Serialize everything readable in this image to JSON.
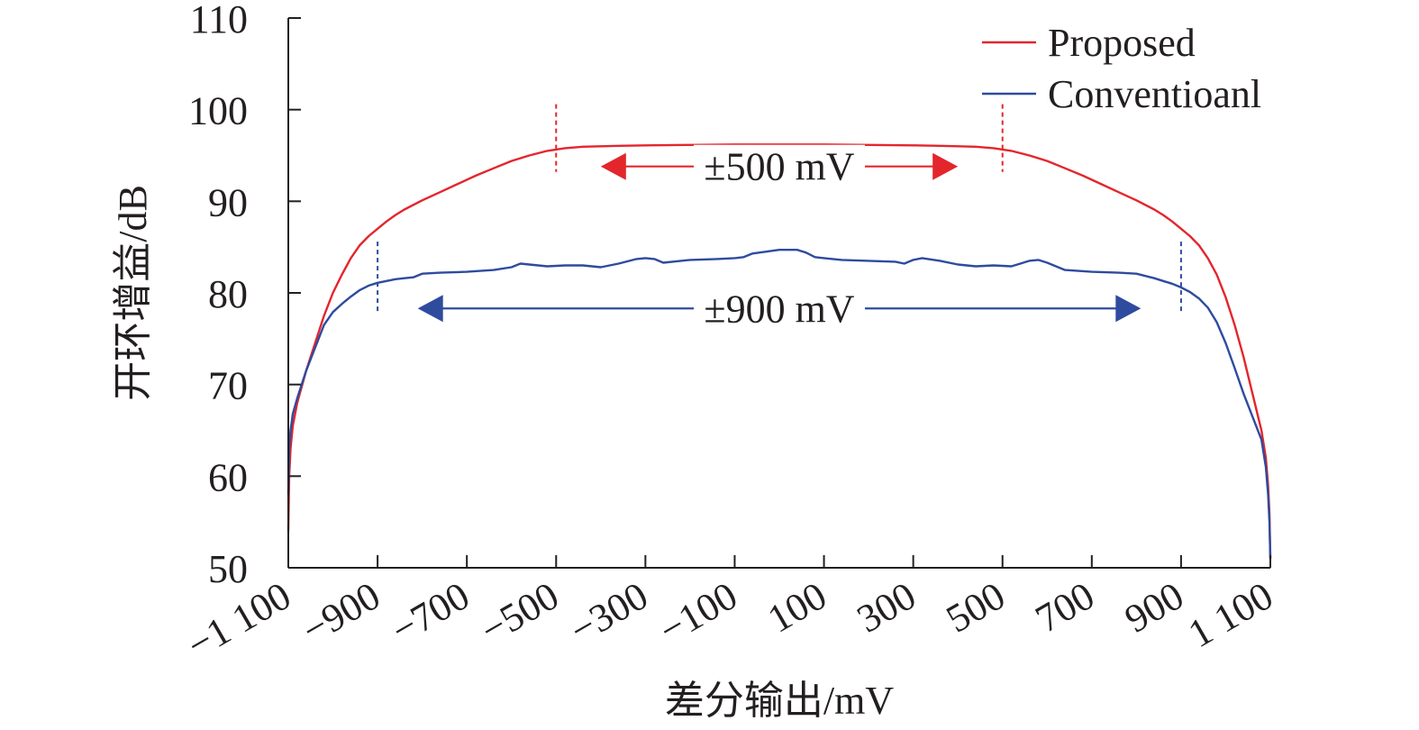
{
  "chart_data": {
    "type": "line",
    "title": "",
    "xlabel": "差分输出/mV",
    "ylabel": "开环增益/dB",
    "xlim": [
      -1100,
      1100
    ],
    "ylim": [
      50,
      110
    ],
    "x_ticks": [
      -1100,
      -900,
      -700,
      -500,
      -300,
      -100,
      100,
      300,
      500,
      700,
      900,
      1100
    ],
    "x_tick_labels": [
      "−1 100",
      "−900",
      "−700",
      "−500",
      "−300",
      "−100",
      "100",
      "300",
      "500",
      "700",
      "900",
      "1 100"
    ],
    "y_ticks": [
      50,
      60,
      70,
      80,
      90,
      100,
      110
    ],
    "y_tick_labels": [
      "50",
      "60",
      "70",
      "80",
      "90",
      "100",
      "110"
    ],
    "grid": false,
    "legend_position": "top-right",
    "series": [
      {
        "name": "Proposed",
        "color": "#e3262c",
        "x": [
          -1100,
          -1098,
          -1095,
          -1090,
          -1080,
          -1060,
          -1040,
          -1020,
          -1000,
          -980,
          -960,
          -940,
          -920,
          -900,
          -880,
          -860,
          -840,
          -800,
          -760,
          -720,
          -680,
          -640,
          -600,
          -560,
          -520,
          -480,
          -440,
          -400,
          -360,
          -300,
          -200,
          -100,
          0,
          100,
          200,
          300,
          360,
          400,
          440,
          480,
          520,
          560,
          600,
          640,
          680,
          720,
          760,
          800,
          840,
          860,
          880,
          900,
          920,
          940,
          960,
          980,
          1000,
          1020,
          1040,
          1060,
          1080,
          1090,
          1095,
          1098,
          1100
        ],
        "y": [
          54,
          60,
          63,
          65.5,
          68,
          71.5,
          74.5,
          77.5,
          80,
          82,
          83.8,
          85.2,
          86.2,
          87,
          87.8,
          88.5,
          89.1,
          90.1,
          91,
          91.9,
          92.8,
          93.6,
          94.4,
          95,
          95.5,
          95.8,
          95.95,
          96,
          96.05,
          96.1,
          96.15,
          96.2,
          96.2,
          96.2,
          96.15,
          96.1,
          96.05,
          96,
          95.95,
          95.8,
          95.5,
          95,
          94.4,
          93.6,
          92.8,
          91.9,
          91,
          90.1,
          89.1,
          88.5,
          87.8,
          87,
          86.2,
          85.2,
          83.8,
          82,
          79.5,
          76.5,
          73,
          69,
          65,
          62,
          59,
          56,
          51
        ]
      },
      {
        "name": "Conventioanl",
        "color": "#2e4b9e",
        "x": [
          -1100,
          -1098,
          -1095,
          -1090,
          -1080,
          -1060,
          -1040,
          -1020,
          -1000,
          -980,
          -960,
          -940,
          -920,
          -900,
          -880,
          -860,
          -840,
          -820,
          -800,
          -760,
          -700,
          -640,
          -600,
          -580,
          -560,
          -520,
          -480,
          -440,
          -400,
          -360,
          -320,
          -300,
          -280,
          -260,
          -200,
          -140,
          -100,
          -80,
          -60,
          0,
          40,
          60,
          80,
          100,
          140,
          200,
          260,
          280,
          300,
          320,
          360,
          400,
          440,
          480,
          520,
          540,
          560,
          580,
          600,
          640,
          700,
          760,
          800,
          840,
          860,
          880,
          900,
          920,
          940,
          960,
          980,
          1000,
          1020,
          1040,
          1060,
          1080,
          1090,
          1095,
          1098,
          1100
        ],
        "y": [
          58,
          63,
          65,
          66.8,
          68.5,
          71.5,
          74,
          76.5,
          77.9,
          78.8,
          79.6,
          80.3,
          80.8,
          81.1,
          81.3,
          81.5,
          81.6,
          81.7,
          82.1,
          82.2,
          82.3,
          82.5,
          82.8,
          83.2,
          83.1,
          82.9,
          83,
          83,
          82.8,
          83.2,
          83.7,
          83.8,
          83.7,
          83.3,
          83.6,
          83.7,
          83.8,
          83.9,
          84.3,
          84.7,
          84.7,
          84.4,
          83.9,
          83.8,
          83.6,
          83.5,
          83.4,
          83.2,
          83.6,
          83.8,
          83.5,
          83.1,
          82.9,
          83,
          82.9,
          83.2,
          83.5,
          83.6,
          83.3,
          82.5,
          82.3,
          82.2,
          82.1,
          81.6,
          81.3,
          81,
          80.6,
          80.1,
          79.4,
          78.4,
          76.8,
          74.5,
          71.8,
          69,
          66.5,
          64,
          61,
          58,
          55,
          51
        ]
      }
    ],
    "annotations": [
      {
        "label": "±500 mV",
        "from": -400,
        "to": 400,
        "marker_at": [
          -500,
          500
        ],
        "y": 93.8,
        "color": "#e3262c"
      },
      {
        "label": "±900 mV",
        "from": -810,
        "to": 810,
        "marker_at": [
          -900,
          900
        ],
        "y": 78.3,
        "color": "#2e4b9e"
      }
    ]
  }
}
